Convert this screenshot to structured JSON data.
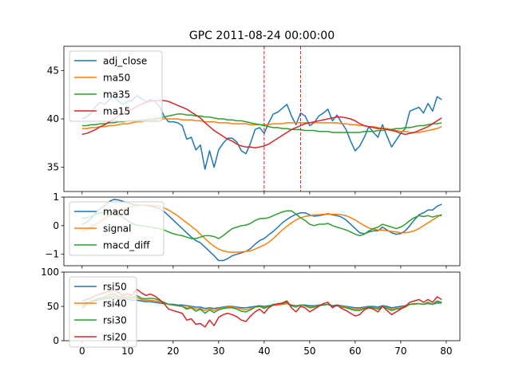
{
  "title": "GPC 2011-08-24 00:00:00",
  "chart_data": [
    {
      "type": "line",
      "panel": "price",
      "ylim": [
        32.5,
        47.5
      ],
      "xlim": [
        -4,
        83
      ],
      "yticks": [
        35,
        40,
        45
      ],
      "vlines": [
        40,
        48
      ],
      "vline_color": "#d62728",
      "legend": "top-left",
      "series": [
        {
          "name": "adj_close",
          "color": "#1f77b4",
          "values": [
            40.0,
            40.2,
            40.6,
            41.3,
            41.7,
            41.5,
            42.0,
            42.3,
            41.8,
            41.5,
            41.8,
            41.9,
            42.4,
            42.1,
            41.8,
            42.0,
            41.8,
            41.3,
            40.3,
            39.7,
            39.7,
            39.6,
            39.3,
            37.9,
            38.1,
            36.8,
            37.3,
            34.8,
            36.7,
            35.0,
            36.8,
            37.5,
            38.0,
            38.0,
            37.6,
            36.7,
            36.4,
            37.5,
            38.9,
            39.1,
            38.5,
            39.6,
            40.5,
            40.7,
            41.1,
            41.5,
            40.3,
            39.4,
            40.6,
            40.3,
            39.3,
            39.6,
            40.3,
            40.6,
            41.0,
            39.8,
            40.4,
            39.6,
            38.9,
            37.7,
            36.7,
            37.2,
            38.1,
            39.2,
            38.6,
            38.1,
            39.4,
            38.2,
            37.1,
            37.8,
            38.5,
            39.0,
            40.8,
            41.0,
            41.2,
            40.6,
            41.6,
            40.8,
            42.3,
            42.0
          ]
        },
        {
          "name": "ma50",
          "color": "#ff7f0e",
          "values": [
            39.0,
            39.0,
            39.1,
            39.1,
            39.2,
            39.2,
            39.3,
            39.3,
            39.4,
            39.5,
            39.5,
            39.6,
            39.7,
            39.7,
            39.8,
            39.8,
            39.9,
            40.0,
            40.0,
            40.0,
            40.0,
            40.0,
            39.9,
            39.9,
            39.9,
            39.8,
            39.8,
            39.7,
            39.7,
            39.7,
            39.6,
            39.6,
            39.6,
            39.5,
            39.5,
            39.5,
            39.5,
            39.4,
            39.4,
            39.4,
            39.4,
            39.4,
            39.5,
            39.5,
            39.5,
            39.6,
            39.6,
            39.6,
            39.6,
            39.6,
            39.6,
            39.6,
            39.6,
            39.6,
            39.6,
            39.6,
            39.6,
            39.5,
            39.5,
            39.4,
            39.4,
            39.3,
            39.3,
            39.2,
            39.2,
            39.1,
            39.0,
            39.0,
            38.9,
            38.8,
            38.7,
            38.7,
            38.6,
            38.6,
            38.6,
            38.7,
            38.8,
            38.9,
            39.0,
            39.2
          ]
        },
        {
          "name": "ma35",
          "color": "#2ca02c",
          "values": [
            39.3,
            39.3,
            39.4,
            39.4,
            39.5,
            39.5,
            39.6,
            39.6,
            39.7,
            39.7,
            39.8,
            39.8,
            39.8,
            39.9,
            39.9,
            40.0,
            40.0,
            40.1,
            40.2,
            40.3,
            40.4,
            40.5,
            40.5,
            40.4,
            40.4,
            40.3,
            40.3,
            40.2,
            40.2,
            40.1,
            40.0,
            40.0,
            39.9,
            39.9,
            39.8,
            39.8,
            39.7,
            39.6,
            39.5,
            39.4,
            39.3,
            39.2,
            39.1,
            39.1,
            39.0,
            39.0,
            38.9,
            38.9,
            38.9,
            38.8,
            38.8,
            38.8,
            38.7,
            38.7,
            38.7,
            38.6,
            38.6,
            38.6,
            38.6,
            38.6,
            38.6,
            38.6,
            38.7,
            38.7,
            38.7,
            38.8,
            38.8,
            38.9,
            38.9,
            39.0,
            39.0,
            39.1,
            39.1,
            39.2,
            39.3,
            39.3,
            39.4,
            39.5,
            39.5,
            39.6
          ]
        },
        {
          "name": "ma15",
          "color": "#d62728",
          "values": [
            38.4,
            38.5,
            38.7,
            38.9,
            39.2,
            39.4,
            39.7,
            40.0,
            40.3,
            40.6,
            40.8,
            41.0,
            41.3,
            41.5,
            41.7,
            41.8,
            41.9,
            41.9,
            41.9,
            41.8,
            41.6,
            41.4,
            41.2,
            41.0,
            40.7,
            40.4,
            40.1,
            39.6,
            39.2,
            38.8,
            38.5,
            38.2,
            37.9,
            37.7,
            37.4,
            37.2,
            37.1,
            37.1,
            37.0,
            37.1,
            37.2,
            37.4,
            37.7,
            38.0,
            38.3,
            38.6,
            38.9,
            39.1,
            39.3,
            39.5,
            39.6,
            39.7,
            39.8,
            39.9,
            40.0,
            40.1,
            40.2,
            40.2,
            40.1,
            40.0,
            39.8,
            39.5,
            39.3,
            39.2,
            39.1,
            39.0,
            39.0,
            38.9,
            38.8,
            38.7,
            38.5,
            38.4,
            38.5,
            38.6,
            38.8,
            39.0,
            39.2,
            39.5,
            39.8,
            40.1
          ]
        }
      ]
    },
    {
      "type": "line",
      "panel": "macd",
      "ylim": [
        -1.4,
        1.0
      ],
      "xlim": [
        -4,
        83
      ],
      "yticks": [
        -1,
        0,
        1
      ],
      "legend": "top-left",
      "series": [
        {
          "name": "macd",
          "color": "#1f77b4",
          "values": [
            0.05,
            0.12,
            0.25,
            0.45,
            0.6,
            0.7,
            0.85,
            0.92,
            0.9,
            0.85,
            0.8,
            0.75,
            0.72,
            0.72,
            0.7,
            0.68,
            0.65,
            0.6,
            0.5,
            0.35,
            0.2,
            0.05,
            -0.1,
            -0.25,
            -0.4,
            -0.52,
            -0.6,
            -0.75,
            -0.9,
            -1.05,
            -1.22,
            -1.22,
            -1.15,
            -1.05,
            -1.0,
            -0.95,
            -0.9,
            -0.8,
            -0.65,
            -0.52,
            -0.45,
            -0.32,
            -0.2,
            -0.05,
            0.1,
            0.22,
            0.32,
            0.4,
            0.45,
            0.45,
            0.38,
            0.33,
            0.35,
            0.38,
            0.42,
            0.38,
            0.35,
            0.3,
            0.2,
            0.05,
            -0.1,
            -0.25,
            -0.28,
            -0.22,
            -0.18,
            -0.18,
            -0.05,
            -0.15,
            -0.25,
            -0.3,
            -0.28,
            -0.18,
            0.0,
            0.2,
            0.38,
            0.45,
            0.55,
            0.55,
            0.68,
            0.75
          ]
        },
        {
          "name": "signal",
          "color": "#ff7f0e",
          "values": [
            -0.2,
            -0.15,
            -0.05,
            0.05,
            0.15,
            0.25,
            0.35,
            0.45,
            0.52,
            0.58,
            0.63,
            0.67,
            0.7,
            0.71,
            0.72,
            0.72,
            0.7,
            0.68,
            0.62,
            0.55,
            0.45,
            0.35,
            0.22,
            0.1,
            -0.02,
            -0.15,
            -0.3,
            -0.45,
            -0.6,
            -0.72,
            -0.82,
            -0.88,
            -0.92,
            -0.93,
            -0.93,
            -0.92,
            -0.9,
            -0.88,
            -0.82,
            -0.75,
            -0.68,
            -0.58,
            -0.45,
            -0.3,
            -0.15,
            -0.02,
            0.1,
            0.2,
            0.28,
            0.32,
            0.35,
            0.38,
            0.38,
            0.4,
            0.4,
            0.4,
            0.4,
            0.38,
            0.35,
            0.28,
            0.2,
            0.1,
            0.0,
            -0.08,
            -0.12,
            -0.15,
            -0.15,
            -0.18,
            -0.2,
            -0.22,
            -0.25,
            -0.25,
            -0.22,
            -0.18,
            -0.1,
            0.0,
            0.1,
            0.2,
            0.3,
            0.4
          ]
        },
        {
          "name": "macd_diff",
          "color": "#2ca02c",
          "values": [
            0.25,
            0.28,
            0.32,
            0.4,
            0.45,
            0.45,
            0.5,
            0.48,
            0.38,
            0.28,
            0.18,
            0.08,
            0.02,
            0.0,
            -0.02,
            -0.05,
            -0.08,
            -0.1,
            -0.15,
            -0.22,
            -0.28,
            -0.32,
            -0.35,
            -0.4,
            -0.45,
            -0.45,
            -0.4,
            -0.35,
            -0.35,
            -0.38,
            -0.45,
            -0.35,
            -0.22,
            -0.1,
            -0.05,
            0.0,
            0.02,
            0.08,
            0.18,
            0.25,
            0.25,
            0.28,
            0.35,
            0.42,
            0.48,
            0.52,
            0.52,
            0.4,
            0.28,
            0.18,
            0.05,
            0.0,
            0.05,
            0.05,
            0.08,
            0.0,
            -0.05,
            -0.1,
            -0.15,
            -0.22,
            -0.3,
            -0.35,
            -0.3,
            -0.18,
            -0.1,
            -0.05,
            0.05,
            0.0,
            -0.05,
            -0.1,
            -0.05,
            0.05,
            0.18,
            0.28,
            0.35,
            0.32,
            0.35,
            0.3,
            0.35,
            0.35
          ]
        }
      ]
    },
    {
      "type": "line",
      "panel": "rsi",
      "ylim": [
        0,
        100
      ],
      "xlim": [
        -4,
        83
      ],
      "yticks": [
        0,
        50,
        100
      ],
      "xticks": [
        0,
        10,
        20,
        30,
        40,
        50,
        60,
        70,
        80
      ],
      "legend": "top-left",
      "series": [
        {
          "name": "rsi50",
          "color": "#1f77b4",
          "values": [
            55,
            56,
            57,
            58,
            60,
            61,
            62,
            62,
            61,
            60,
            60,
            59,
            59,
            58,
            57,
            57,
            56,
            55,
            54,
            53,
            53,
            52,
            52,
            51,
            50,
            49,
            49,
            47,
            48,
            47,
            48,
            49,
            50,
            50,
            49,
            48,
            48,
            49,
            50,
            51,
            50,
            51,
            52,
            53,
            53,
            54,
            52,
            51,
            52,
            52,
            51,
            51,
            52,
            52,
            53,
            51,
            52,
            51,
            50,
            49,
            48,
            48,
            49,
            50,
            50,
            49,
            51,
            50,
            48,
            49,
            50,
            51,
            53,
            53,
            54,
            53,
            54,
            53,
            55,
            55
          ]
        },
        {
          "name": "rsi40",
          "color": "#ff7f0e",
          "values": [
            51,
            55,
            58,
            60,
            61,
            62,
            64,
            65,
            63,
            62,
            62,
            61,
            63,
            60,
            59,
            59,
            58,
            57,
            55,
            53,
            52,
            51,
            50,
            48,
            49,
            46,
            47,
            44,
            47,
            44,
            47,
            48,
            49,
            49,
            48,
            46,
            45,
            47,
            49,
            50,
            48,
            50,
            52,
            52,
            53,
            54,
            51,
            50,
            52,
            51,
            49,
            50,
            51,
            52,
            53,
            50,
            51,
            50,
            49,
            47,
            46,
            46,
            48,
            49,
            48,
            47,
            50,
            48,
            46,
            47,
            48,
            50,
            53,
            53,
            54,
            53,
            55,
            53,
            57,
            56
          ]
        },
        {
          "name": "rsi30",
          "color": "#2ca02c",
          "values": [
            47,
            53,
            57,
            60,
            62,
            64,
            67,
            68,
            65,
            64,
            64,
            63,
            66,
            62,
            61,
            62,
            61,
            59,
            56,
            53,
            52,
            51,
            50,
            46,
            48,
            43,
            46,
            40,
            45,
            41,
            45,
            47,
            48,
            48,
            46,
            43,
            42,
            45,
            49,
            50,
            47,
            50,
            53,
            53,
            54,
            56,
            51,
            49,
            52,
            51,
            48,
            49,
            51,
            52,
            53,
            50,
            51,
            49,
            48,
            46,
            44,
            44,
            47,
            49,
            48,
            46,
            50,
            47,
            44,
            46,
            47,
            49,
            53,
            54,
            54,
            53,
            56,
            53,
            58,
            56
          ]
        },
        {
          "name": "rsi20",
          "color": "#d62728",
          "values": [
            58,
            60,
            62,
            66,
            68,
            70,
            72,
            74,
            70,
            66,
            68,
            66,
            75,
            70,
            66,
            68,
            65,
            60,
            54,
            46,
            44,
            42,
            40,
            30,
            32,
            24,
            25,
            20,
            30,
            22,
            34,
            38,
            40,
            38,
            35,
            30,
            28,
            36,
            42,
            46,
            40,
            48,
            52,
            54,
            55,
            58,
            48,
            42,
            50,
            48,
            42,
            46,
            50,
            54,
            56,
            48,
            52,
            47,
            44,
            40,
            36,
            38,
            45,
            48,
            46,
            42,
            50,
            44,
            38,
            42,
            46,
            50,
            56,
            58,
            60,
            56,
            60,
            56,
            64,
            60
          ]
        }
      ]
    }
  ]
}
